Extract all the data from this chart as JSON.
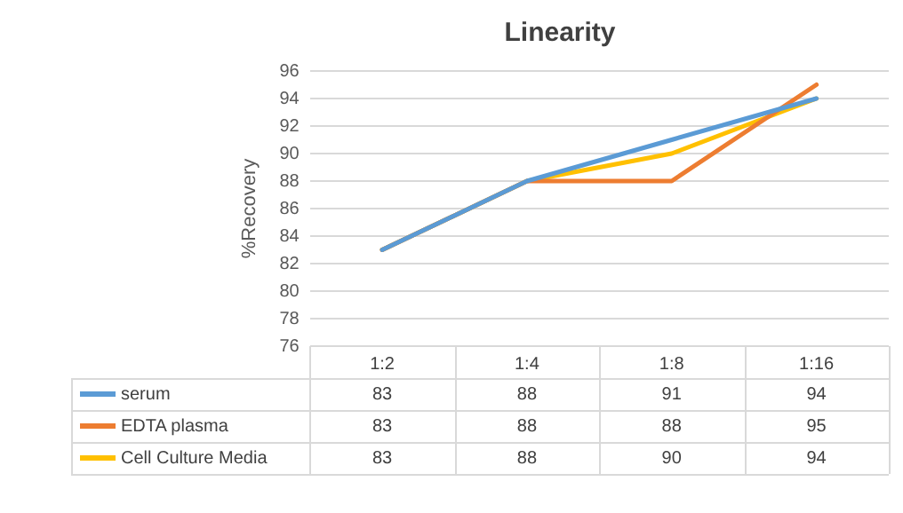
{
  "chart_data": {
    "type": "line",
    "title": "Linearity",
    "ylabel": "%Recovery",
    "categories": [
      "1:2",
      "1:4",
      "1:8",
      "1:16"
    ],
    "series": [
      {
        "name": "serum",
        "color": "#5b9bd5",
        "values": [
          83,
          88,
          91,
          94
        ]
      },
      {
        "name": "EDTA plasma",
        "color": "#ed7d31",
        "values": [
          83,
          88,
          88,
          95
        ]
      },
      {
        "name": "Cell Culture Media",
        "color": "#ffc000",
        "values": [
          83,
          88,
          90,
          94
        ]
      }
    ],
    "ylim": [
      76,
      96
    ],
    "yticks": [
      76,
      78,
      80,
      82,
      84,
      86,
      88,
      90,
      92,
      94,
      96
    ],
    "grid": "y",
    "legend": "bottom left",
    "data_labels": true,
    "marker": "none",
    "line_style": "solid"
  }
}
